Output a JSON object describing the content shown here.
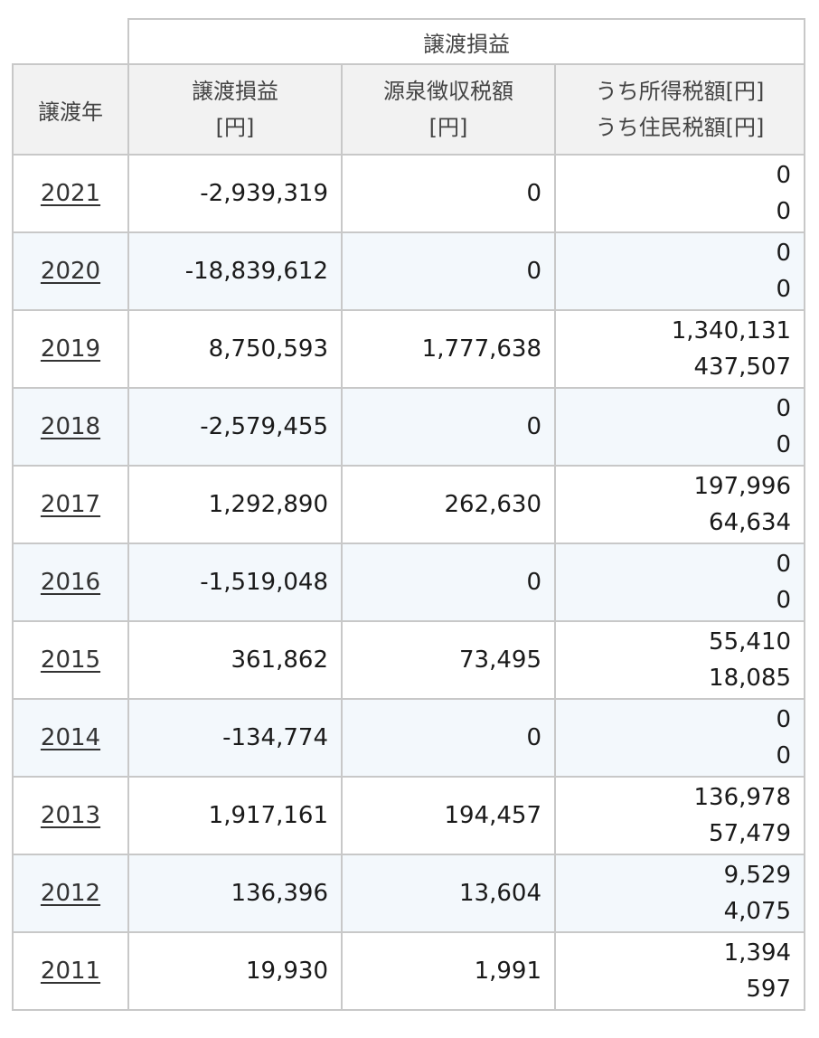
{
  "header": {
    "group_label": "譲渡損益",
    "year_label": "譲渡年",
    "gain_label": "譲渡損益",
    "gain_unit": "[円]",
    "withholding_label": "源泉徴収税額",
    "withholding_unit": "[円]",
    "income_tax_label": "うち所得税額[円]",
    "resident_tax_label": "うち住民税額[円]"
  },
  "rows": [
    {
      "year": "2021",
      "gain": "-2,939,319",
      "withholding": "0",
      "income_tax": "0",
      "resident_tax": "0"
    },
    {
      "year": "2020",
      "gain": "-18,839,612",
      "withholding": "0",
      "income_tax": "0",
      "resident_tax": "0"
    },
    {
      "year": "2019",
      "gain": "8,750,593",
      "withholding": "1,777,638",
      "income_tax": "1,340,131",
      "resident_tax": "437,507"
    },
    {
      "year": "2018",
      "gain": "-2,579,455",
      "withholding": "0",
      "income_tax": "0",
      "resident_tax": "0"
    },
    {
      "year": "2017",
      "gain": "1,292,890",
      "withholding": "262,630",
      "income_tax": "197,996",
      "resident_tax": "64,634"
    },
    {
      "year": "2016",
      "gain": "-1,519,048",
      "withholding": "0",
      "income_tax": "0",
      "resident_tax": "0"
    },
    {
      "year": "2015",
      "gain": "361,862",
      "withholding": "73,495",
      "income_tax": "55,410",
      "resident_tax": "18,085"
    },
    {
      "year": "2014",
      "gain": "-134,774",
      "withholding": "0",
      "income_tax": "0",
      "resident_tax": "0"
    },
    {
      "year": "2013",
      "gain": "1,917,161",
      "withholding": "194,457",
      "income_tax": "136,978",
      "resident_tax": "57,479"
    },
    {
      "year": "2012",
      "gain": "136,396",
      "withholding": "13,604",
      "income_tax": "9,529",
      "resident_tax": "4,075"
    },
    {
      "year": "2011",
      "gain": "19,930",
      "withholding": "1,991",
      "income_tax": "1,394",
      "resident_tax": "597"
    }
  ]
}
